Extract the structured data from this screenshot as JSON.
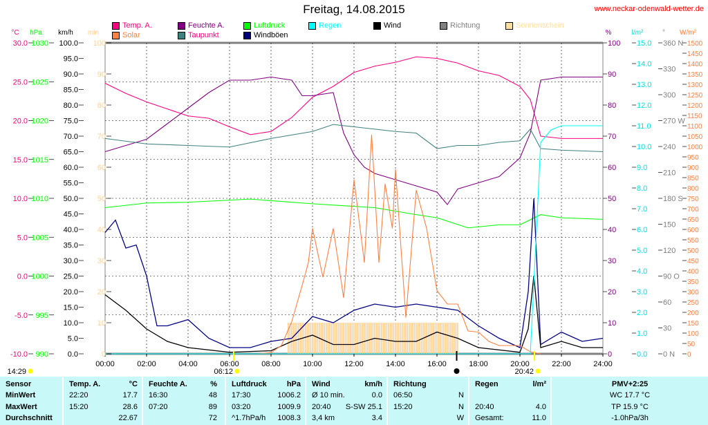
{
  "title": "Freitag, 14.08.2015",
  "url": "www.neckar-odenwald-wetter.de",
  "legend": [
    {
      "label": "Temp. A.",
      "color": "#ff0080"
    },
    {
      "label": "Solar",
      "color": "#ff8040"
    },
    {
      "label": "Feuchte A.",
      "color": "#800080"
    },
    {
      "label": "Taupunkt",
      "color": "#408080",
      "text_color": "#ff0080"
    },
    {
      "label": "Luftdruck",
      "color": "#00ff00"
    },
    {
      "label": "Windböen",
      "color": "#000080",
      "text_color": "#000"
    },
    {
      "label": "Regen",
      "color": "#00ffff"
    },
    {
      "label": "Wind",
      "color": "#000000"
    },
    {
      "label": "Richtung",
      "color": "#808080"
    },
    {
      "label": "Sonnenschein",
      "color": "#ffe0a0"
    }
  ],
  "axis_units": {
    "temp": "°C",
    "pressure": "hPa",
    "wind": "km/h",
    "sun": "min",
    "humidity": "%",
    "rain": "l/m²",
    "direction": "°",
    "solar": "W/m²"
  },
  "markers": {
    "left": "14:29",
    "sunrise": "06:12",
    "sunset": "20:42"
  },
  "chart_data": {
    "type": "line",
    "title": "Freitag, 14.08.2015",
    "x_range_hours": [
      0,
      24
    ],
    "x_ticks": [
      "00:00",
      "02:00",
      "04:00",
      "06:00",
      "08:00",
      "10:00",
      "12:00",
      "14:00",
      "16:00",
      "18:00",
      "20:00",
      "22:00",
      "24:00"
    ],
    "axes": {
      "temp": {
        "range": [
          -10,
          30
        ],
        "step": 5
      },
      "pressure": {
        "range": [
          990,
          1030
        ],
        "step": 5
      },
      "wind": {
        "range": [
          0,
          100
        ],
        "step": 5
      },
      "sun": {
        "range": [
          0,
          100
        ],
        "step": 10
      },
      "humidity": {
        "range": [
          0,
          100
        ],
        "step": 10
      },
      "rain": {
        "range": [
          0,
          15
        ],
        "step": 1
      },
      "direction": {
        "range": [
          0,
          360
        ],
        "step": 30,
        "labels": {
          "0": "N",
          "90": "O",
          "180": "S",
          "270": "W",
          "360": "N"
        }
      },
      "solar": {
        "range": [
          0,
          1500
        ],
        "step": 50
      }
    },
    "series": [
      {
        "name": "Temp. A.",
        "axis": "temp",
        "color": "#ff0080",
        "points": [
          [
            0,
            24.8
          ],
          [
            1,
            23.5
          ],
          [
            2,
            22.4
          ],
          [
            3,
            21.5
          ],
          [
            4,
            20.6
          ],
          [
            5,
            20.3
          ],
          [
            6,
            19.2
          ],
          [
            7,
            18.2
          ],
          [
            8,
            18.6
          ],
          [
            9,
            20.4
          ],
          [
            10,
            23
          ],
          [
            11,
            24.4
          ],
          [
            12,
            26.2
          ],
          [
            13,
            27
          ],
          [
            14,
            27.5
          ],
          [
            15,
            28.2
          ],
          [
            16,
            28
          ],
          [
            17,
            27.4
          ],
          [
            18,
            26.4
          ],
          [
            19,
            25.8
          ],
          [
            20,
            24.4
          ],
          [
            20.5,
            22.7
          ],
          [
            21,
            18
          ],
          [
            22,
            17.7
          ],
          [
            23,
            17.7
          ],
          [
            24,
            17.7
          ]
        ]
      },
      {
        "name": "Feuchte A.",
        "axis": "humidity",
        "color": "#800080",
        "points": [
          [
            0,
            65
          ],
          [
            1,
            67
          ],
          [
            2,
            69
          ],
          [
            3,
            74
          ],
          [
            4,
            79
          ],
          [
            5,
            84
          ],
          [
            6,
            88
          ],
          [
            7,
            88
          ],
          [
            8,
            89
          ],
          [
            9,
            88
          ],
          [
            9.5,
            83
          ],
          [
            10,
            83
          ],
          [
            11,
            84
          ],
          [
            11.5,
            71
          ],
          [
            12,
            64
          ],
          [
            12.5,
            60
          ],
          [
            13,
            58
          ],
          [
            14,
            56
          ],
          [
            15,
            54
          ],
          [
            16,
            52
          ],
          [
            16.5,
            48
          ],
          [
            17,
            53
          ],
          [
            18,
            55
          ],
          [
            19,
            57
          ],
          [
            20,
            63
          ],
          [
            20.5,
            71
          ],
          [
            21,
            88
          ],
          [
            22,
            89
          ],
          [
            24,
            89
          ]
        ]
      },
      {
        "name": "Taupunkt",
        "axis": "temp",
        "color": "#408080",
        "points": [
          [
            0,
            17.7
          ],
          [
            2,
            17
          ],
          [
            4,
            16.8
          ],
          [
            6,
            16.6
          ],
          [
            8,
            17.7
          ],
          [
            10,
            18.6
          ],
          [
            11,
            19.5
          ],
          [
            12,
            19.2
          ],
          [
            14,
            18.6
          ],
          [
            15,
            18.4
          ],
          [
            16,
            16.4
          ],
          [
            17,
            16.8
          ],
          [
            18,
            16.8
          ],
          [
            19,
            17.2
          ],
          [
            20,
            17.4
          ],
          [
            20.5,
            18.9
          ],
          [
            21,
            16.4
          ],
          [
            22,
            16.2
          ],
          [
            24,
            16
          ]
        ]
      },
      {
        "name": "Luftdruck",
        "axis": "pressure",
        "color": "#00ff00",
        "points": [
          [
            0,
            1008.8
          ],
          [
            2,
            1009.4
          ],
          [
            4,
            1009.5
          ],
          [
            7,
            1009.9
          ],
          [
            10,
            1009.3
          ],
          [
            13,
            1008.8
          ],
          [
            15,
            1007.9
          ],
          [
            16,
            1007.5
          ],
          [
            17.5,
            1006.2
          ],
          [
            19,
            1006.6
          ],
          [
            20,
            1006.6
          ],
          [
            21,
            1007.9
          ],
          [
            22,
            1007.5
          ],
          [
            24,
            1007.3
          ]
        ]
      },
      {
        "name": "Windböen",
        "axis": "wind",
        "color": "#000080",
        "points": [
          [
            0,
            39
          ],
          [
            0.5,
            43
          ],
          [
            1,
            34
          ],
          [
            1.5,
            35
          ],
          [
            2,
            25
          ],
          [
            2.5,
            9
          ],
          [
            3,
            9
          ],
          [
            4,
            11
          ],
          [
            5,
            5
          ],
          [
            6,
            2
          ],
          [
            7,
            2
          ],
          [
            8,
            4
          ],
          [
            9,
            5
          ],
          [
            10,
            12
          ],
          [
            11,
            10
          ],
          [
            12,
            14
          ],
          [
            13,
            16
          ],
          [
            14,
            15
          ],
          [
            15,
            16
          ],
          [
            16,
            15
          ],
          [
            17,
            14
          ],
          [
            18,
            9
          ],
          [
            19,
            5
          ],
          [
            20,
            2
          ],
          [
            20.4,
            20
          ],
          [
            20.67,
            50
          ],
          [
            21,
            3
          ],
          [
            22,
            7
          ],
          [
            23,
            4
          ],
          [
            24,
            5
          ]
        ]
      },
      {
        "name": "Wind",
        "axis": "wind",
        "color": "#000000",
        "points": [
          [
            0,
            19
          ],
          [
            1,
            14
          ],
          [
            2,
            8
          ],
          [
            3,
            4
          ],
          [
            4,
            2
          ],
          [
            6,
            0.5
          ],
          [
            8,
            1
          ],
          [
            9,
            4
          ],
          [
            10,
            6
          ],
          [
            11,
            3
          ],
          [
            12,
            3
          ],
          [
            13,
            5
          ],
          [
            14,
            4
          ],
          [
            15,
            4
          ],
          [
            16,
            7
          ],
          [
            17,
            5
          ],
          [
            18,
            2
          ],
          [
            20,
            0.5
          ],
          [
            20.4,
            8
          ],
          [
            20.67,
            25.1
          ],
          [
            21,
            2
          ],
          [
            22,
            4
          ],
          [
            23,
            2
          ],
          [
            24,
            2
          ]
        ]
      },
      {
        "name": "Solar",
        "axis": "solar",
        "color": "#ff8040",
        "points": [
          [
            7.3,
            0
          ],
          [
            8,
            6
          ],
          [
            8.5,
            40
          ],
          [
            9,
            155
          ],
          [
            9.5,
            330
          ],
          [
            9.8,
            440
          ],
          [
            10,
            605
          ],
          [
            10.5,
            370
          ],
          [
            11,
            605
          ],
          [
            11.5,
            270
          ],
          [
            12,
            840
          ],
          [
            12.5,
            440
          ],
          [
            12.85,
            1057
          ],
          [
            13.2,
            440
          ],
          [
            13.5,
            820
          ],
          [
            13.85,
            605
          ],
          [
            14,
            890
          ],
          [
            14.5,
            175
          ],
          [
            15,
            790
          ],
          [
            15.5,
            605
          ],
          [
            16,
            305
          ],
          [
            16.5,
            240
          ],
          [
            17,
            240
          ],
          [
            17.5,
            110
          ],
          [
            18,
            105
          ],
          [
            18.5,
            60
          ],
          [
            19,
            40
          ],
          [
            19.5,
            40
          ],
          [
            20,
            40
          ],
          [
            20.5,
            10
          ],
          [
            21,
            0
          ]
        ]
      },
      {
        "name": "Regen",
        "axis": "rain",
        "color": "#00ffff",
        "points": [
          [
            0,
            0
          ],
          [
            20.5,
            0
          ],
          [
            20.8,
            6
          ],
          [
            21,
            10.2
          ],
          [
            21.5,
            10.8
          ],
          [
            22,
            11
          ],
          [
            24,
            11
          ]
        ]
      }
    ],
    "sunshine": {
      "axis": "sun",
      "color": "#ffd090",
      "from": 8.83,
      "to": 17,
      "value": 10
    }
  },
  "table": {
    "headers": [
      [
        "Sensor",
        ""
      ],
      [
        "Temp. A.",
        "°C"
      ],
      [
        "Feuchte A.",
        "%"
      ],
      [
        "Luftdruck",
        "hPa"
      ],
      [
        "Wind",
        "km/h"
      ],
      [
        "Richtung",
        ""
      ],
      [
        "Regen",
        "l/m²"
      ],
      [
        "PMV+2:25",
        ""
      ]
    ],
    "rows": [
      {
        "label": "MinWert",
        "cells": [
          [
            "22:20",
            "17.7"
          ],
          [
            "16:30",
            "48"
          ],
          [
            "17:30",
            "1006.2"
          ],
          [
            "Ø 10 min.",
            "0.0"
          ],
          [
            "06:50",
            "N"
          ],
          [
            "",
            ""
          ],
          [
            "WC 17.7 °C",
            ""
          ]
        ]
      },
      {
        "label": "MaxWert",
        "cells": [
          [
            "15:20",
            "28.6"
          ],
          [
            "07:20",
            "89"
          ],
          [
            "03:20",
            "1009.9"
          ],
          [
            "20:40",
            "S-SW 25.1"
          ],
          [
            "15:20",
            "N"
          ],
          [
            "20:40",
            "4.0"
          ],
          [
            "TP 15.9 °C",
            ""
          ]
        ]
      },
      {
        "label": "Durchschnitt",
        "cells": [
          [
            "",
            "22.67"
          ],
          [
            "",
            "72"
          ],
          [
            "^1.7hPa/h",
            "1008.3"
          ],
          [
            "3,4 km",
            "3.4"
          ],
          [
            "",
            "W"
          ],
          [
            "Gesamt:",
            "11.0"
          ],
          [
            "-1.0hPa/3h",
            ""
          ]
        ]
      }
    ]
  }
}
